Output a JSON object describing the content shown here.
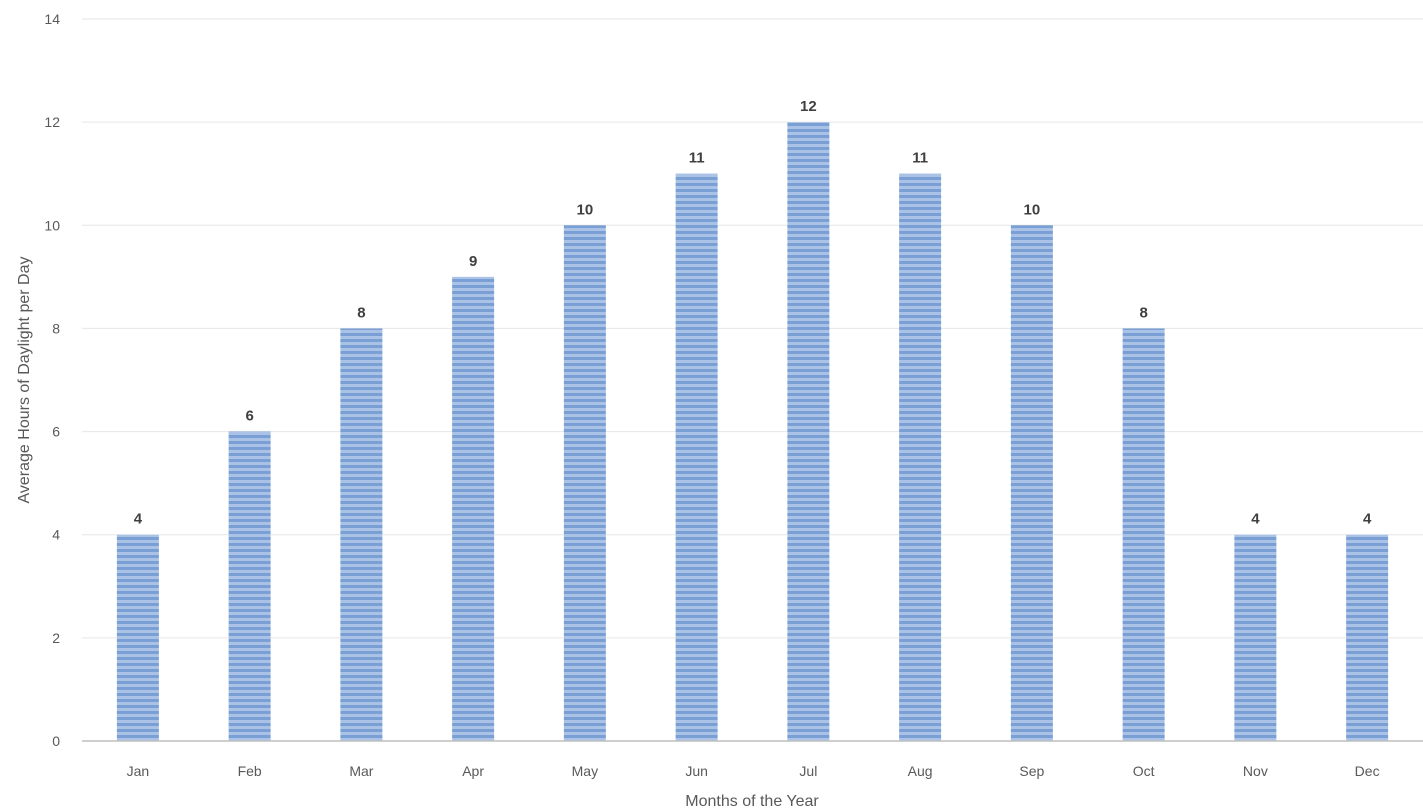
{
  "chart_data": {
    "type": "bar",
    "title": "",
    "xlabel": "Months of the Year",
    "ylabel": "Average Hours of Daylight per Day",
    "categories": [
      "Jan",
      "Feb",
      "Mar",
      "Apr",
      "May",
      "Jun",
      "Jul",
      "Aug",
      "Sep",
      "Oct",
      "Nov",
      "Dec"
    ],
    "values": [
      4,
      6,
      8,
      9,
      10,
      11,
      12,
      11,
      10,
      8,
      4,
      4
    ],
    "ylim": [
      0,
      14
    ],
    "yticks": [
      0,
      2,
      4,
      6,
      8,
      10,
      12,
      14
    ],
    "grid": true,
    "legend": "none",
    "data_labels": true,
    "colors": {
      "bar": "#7a9fd4",
      "bar_stripe": "#a9c2e6",
      "grid": "#e6e6e6",
      "axis": "#bfbfbf"
    }
  }
}
